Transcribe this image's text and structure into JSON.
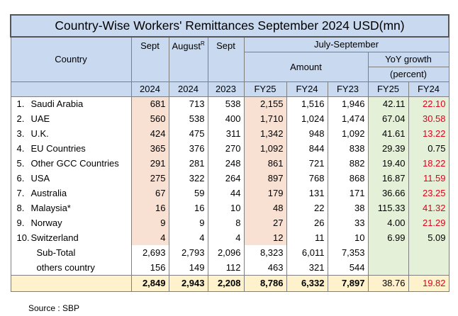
{
  "title": "Country-Wise Workers' Remittances September 2024 USD(mn)",
  "headers": {
    "country": "Country",
    "sept": "Sept",
    "august": "August",
    "august_sup": "R",
    "sept2": "Sept",
    "july_sept": "July-September",
    "amount": "Amount",
    "yoy": "YoY growth",
    "yoy_unit": "(percent)",
    "years": [
      "2024",
      "2024",
      "2023",
      "FY25",
      "FY24",
      "FY23",
      "FY25",
      "FY24"
    ]
  },
  "rows": [
    {
      "idx": "1.",
      "country": "Saudi Arabia",
      "sept24": "681",
      "aug24": "713",
      "sept23": "538",
      "fy25": "2,155",
      "fy24": "1,516",
      "fy23": "1,946",
      "g25": "42.11",
      "g24": "22.10",
      "g24_red": true
    },
    {
      "idx": "2.",
      "country": "UAE",
      "sept24": "560",
      "aug24": "538",
      "sept23": "400",
      "fy25": "1,710",
      "fy24": "1,024",
      "fy23": "1,474",
      "g25": "67.04",
      "g24": "30.58",
      "g24_red": true
    },
    {
      "idx": "3.",
      "country": "U.K.",
      "sept24": "424",
      "aug24": "475",
      "sept23": "311",
      "fy25": "1,342",
      "fy24": "948",
      "fy23": "1,092",
      "g25": "41.61",
      "g24": "13.22",
      "g24_red": true
    },
    {
      "idx": "4.",
      "country": "EU Countries",
      "sept24": "365",
      "aug24": "376",
      "sept23": "270",
      "fy25": "1,092",
      "fy24": "844",
      "fy23": "838",
      "g25": "29.39",
      "g24": "0.75",
      "g24_red": false
    },
    {
      "idx": "5.",
      "country": "Other GCC Countries",
      "sept24": "291",
      "aug24": "281",
      "sept23": "248",
      "fy25": "861",
      "fy24": "721",
      "fy23": "882",
      "g25": "19.40",
      "g24": "18.22",
      "g24_red": true
    },
    {
      "idx": "6.",
      "country": "USA",
      "sept24": "275",
      "aug24": "322",
      "sept23": "264",
      "fy25": "897",
      "fy24": "768",
      "fy23": "868",
      "g25": "16.87",
      "g24": "11.59",
      "g24_red": true
    },
    {
      "idx": "7.",
      "country": "Australia",
      "sept24": "67",
      "aug24": "59",
      "sept23": "44",
      "fy25": "179",
      "fy24": "131",
      "fy23": "171",
      "g25": "36.66",
      "g24": "23.25",
      "g24_red": true
    },
    {
      "idx": "8.",
      "country": "Malaysia*",
      "sept24": "16",
      "aug24": "16",
      "sept23": "10",
      "fy25": "48",
      "fy24": "22",
      "fy23": "38",
      "g25": "115.33",
      "g24": "41.32",
      "g24_red": true
    },
    {
      "idx": "9.",
      "country": "Norway",
      "sept24": "9",
      "aug24": "9",
      "sept23": "8",
      "fy25": "27",
      "fy24": "26",
      "fy23": "33",
      "g25": "4.00",
      "g24": "21.29",
      "g24_red": true
    },
    {
      "idx": "10.",
      "country": "Switzerland",
      "sept24": "4",
      "aug24": "4",
      "sept23": "4",
      "fy25": "12",
      "fy24": "11",
      "fy23": "10",
      "g25": "6.99",
      "g24": "5.09",
      "g24_red": false
    }
  ],
  "subtotal": {
    "label": "Sub-Total",
    "sept24": "2,693",
    "aug24": "2,793",
    "sept23": "2,096",
    "fy25": "8,323",
    "fy24": "6,011",
    "fy23": "7,353"
  },
  "others": {
    "label": "others country",
    "sept24": "156",
    "aug24": "149",
    "sept23": "112",
    "fy25": "463",
    "fy24": "321",
    "fy23": "544"
  },
  "total": {
    "sept24": "2,849",
    "aug24": "2,943",
    "sept23": "2,208",
    "fy25": "8,786",
    "fy24": "6,332",
    "fy23": "7,897",
    "g25": "38.76",
    "g24": "19.82"
  },
  "source": "Source : SBP",
  "colors": {
    "header_bg": "#c9daf0",
    "pink": "#f8e0d3",
    "green": "#e5f0d9",
    "total_bg": "#fef2cc",
    "negative_red": "#e0001b"
  }
}
